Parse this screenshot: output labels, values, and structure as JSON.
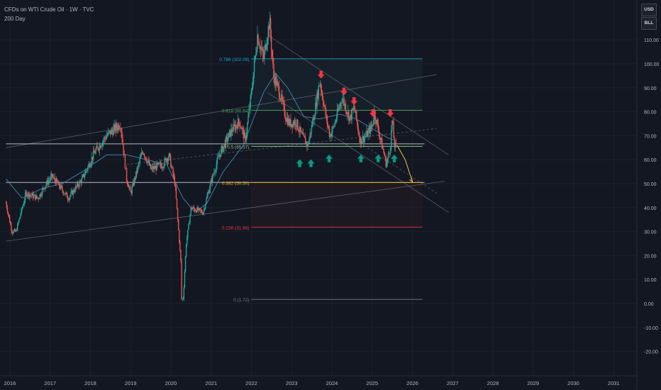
{
  "header": {
    "title": "CFDs on WTI Crude Oil · 1W · TVC",
    "indicator": "200 Day"
  },
  "scale_buttons": [
    "USD",
    "BLL"
  ],
  "colors": {
    "background": "#131722",
    "up_candle": "#26a69a",
    "down_candle": "#ef5350",
    "sell_arrow": "#f23645",
    "buy_arrow": "#089981",
    "projection": "#e8c547"
  },
  "chart_data": {
    "type": "candlestick",
    "symbol": "CFDs on WTI Crude Oil",
    "interval": "1W",
    "x_labels": [
      "2016",
      "2017",
      "2018",
      "2019",
      "2020",
      "2021",
      "2022",
      "2023",
      "2024",
      "2025",
      "2026",
      "2027",
      "2028",
      "2029",
      "2030",
      "2031"
    ],
    "y_labels": [
      "110.00",
      "100.00",
      "90.00",
      "80.00",
      "70.00",
      "60.00",
      "50.00",
      "40.00",
      "30.00",
      "20.00",
      "10.00",
      "0.00",
      "-10.00",
      "-20.00"
    ],
    "ylim": [
      -25,
      118
    ],
    "xlim": [
      2015.9,
      2031.6
    ],
    "price_path": [
      [
        2015.9,
        42
      ],
      [
        2016.05,
        30
      ],
      [
        2016.15,
        30
      ],
      [
        2016.4,
        46
      ],
      [
        2016.7,
        44
      ],
      [
        2016.9,
        50
      ],
      [
        2017.05,
        53
      ],
      [
        2017.45,
        44
      ],
      [
        2017.8,
        52
      ],
      [
        2018.1,
        63
      ],
      [
        2018.4,
        70
      ],
      [
        2018.75,
        75
      ],
      [
        2018.9,
        52
      ],
      [
        2019.0,
        46
      ],
      [
        2019.3,
        64
      ],
      [
        2019.5,
        56
      ],
      [
        2019.8,
        58
      ],
      [
        2019.95,
        62
      ],
      [
        2020.1,
        50
      ],
      [
        2020.2,
        28
      ],
      [
        2020.28,
        10
      ],
      [
        2020.3,
        0.5
      ],
      [
        2020.38,
        25
      ],
      [
        2020.5,
        40
      ],
      [
        2020.8,
        38
      ],
      [
        2020.95,
        48
      ],
      [
        2021.2,
        62
      ],
      [
        2021.5,
        72
      ],
      [
        2021.7,
        76
      ],
      [
        2021.85,
        68
      ],
      [
        2022.0,
        88
      ],
      [
        2022.15,
        112
      ],
      [
        2022.3,
        102
      ],
      [
        2022.45,
        118
      ],
      [
        2022.55,
        95
      ],
      [
        2022.7,
        88
      ],
      [
        2022.85,
        78
      ],
      [
        2022.95,
        75
      ],
      [
        2023.1,
        76
      ],
      [
        2023.25,
        70
      ],
      [
        2023.4,
        66
      ],
      [
        2023.55,
        78
      ],
      [
        2023.7,
        93
      ],
      [
        2023.85,
        78
      ],
      [
        2023.95,
        70
      ],
      [
        2024.05,
        74
      ],
      [
        2024.25,
        86
      ],
      [
        2024.45,
        77
      ],
      [
        2024.55,
        82
      ],
      [
        2024.7,
        68
      ],
      [
        2024.85,
        70
      ],
      [
        2025.0,
        74
      ],
      [
        2025.05,
        80
      ],
      [
        2025.2,
        69
      ],
      [
        2025.3,
        62
      ],
      [
        2025.35,
        58
      ],
      [
        2025.45,
        65
      ],
      [
        2025.5,
        77
      ],
      [
        2025.55,
        66
      ],
      [
        2025.6,
        65
      ]
    ],
    "moving_average": {
      "name": "200 Day",
      "points": [
        [
          2015.9,
          52
        ],
        [
          2016.3,
          44
        ],
        [
          2016.8,
          48
        ],
        [
          2017.3,
          50
        ],
        [
          2017.8,
          55
        ],
        [
          2018.4,
          62
        ],
        [
          2018.9,
          62
        ],
        [
          2019.4,
          60
        ],
        [
          2019.9,
          58
        ],
        [
          2020.3,
          44
        ],
        [
          2020.6,
          38
        ],
        [
          2020.9,
          42
        ],
        [
          2021.3,
          55
        ],
        [
          2021.8,
          66
        ],
        [
          2022.3,
          88
        ],
        [
          2022.6,
          96
        ],
        [
          2022.9,
          90
        ],
        [
          2023.3,
          78
        ],
        [
          2023.7,
          77
        ],
        [
          2024.2,
          79
        ],
        [
          2024.6,
          77
        ],
        [
          2025.0,
          73
        ],
        [
          2025.4,
          69
        ],
        [
          2025.6,
          68
        ]
      ]
    },
    "fibonacci": [
      {
        "label": "0.786 (102.09)",
        "value": 102.09,
        "color": "#22a7c9"
      },
      {
        "label": "0.618 (80.64)",
        "value": 80.64,
        "color": "#4caf50"
      },
      {
        "label": "0.5 (65.57)",
        "value": 65.57,
        "color": "#81c784"
      },
      {
        "label": "0.382 (50.50)",
        "value": 50.5,
        "color": "#f7b500"
      },
      {
        "label": "0.236 (31.86)",
        "value": 31.86,
        "color": "#f23645"
      },
      {
        "label": "0 (1.72)",
        "value": 1.72,
        "color": "#787b86"
      }
    ],
    "fib_x_range": [
      2022.0,
      2026.25
    ],
    "horizontal_lines": [
      {
        "value": 66.6,
        "color": "#d1d4dc",
        "x_from": 2015.9,
        "x_to": 2026.3
      },
      {
        "value": 50.5,
        "color": "#d1d4dc",
        "x_from": 2015.9,
        "x_to": 2026.3
      }
    ],
    "trend_lines": [
      {
        "p1": [
          2015.9,
          65
        ],
        "p2": [
          2026.6,
          95.5
        ],
        "color": "#787b86"
      },
      {
        "p1": [
          2015.9,
          26
        ],
        "p2": [
          2026.8,
          51
        ],
        "color": "#787b86"
      },
      {
        "p1": [
          2022.4,
          112
        ],
        "p2": [
          2026.9,
          62
        ],
        "color": "#787b86"
      },
      {
        "p1": [
          2022.4,
          88
        ],
        "p2": [
          2026.9,
          38
        ],
        "color": "#787b86"
      },
      {
        "p1": [
          2018.9,
          58
        ],
        "p2": [
          2026.6,
          73
        ],
        "color": "#787b86",
        "dashed": true
      },
      {
        "p1": [
          2024.8,
          66
        ],
        "p2": [
          2026.6,
          46
        ],
        "color": "#787b86",
        "dashed": true
      }
    ],
    "sell_arrows": [
      [
        2023.73,
        95
      ],
      [
        2024.3,
        88
      ],
      [
        2024.55,
        84
      ],
      [
        2025.02,
        79
      ],
      [
        2025.45,
        79
      ]
    ],
    "buy_arrows": [
      [
        2023.2,
        59
      ],
      [
        2023.48,
        59
      ],
      [
        2023.93,
        61
      ],
      [
        2024.72,
        61
      ],
      [
        2025.15,
        61
      ],
      [
        2025.55,
        61
      ]
    ],
    "projection": {
      "points": [
        [
          2025.62,
          66
        ],
        [
          2025.82,
          60
        ],
        [
          2026.0,
          50.8
        ]
      ]
    }
  }
}
